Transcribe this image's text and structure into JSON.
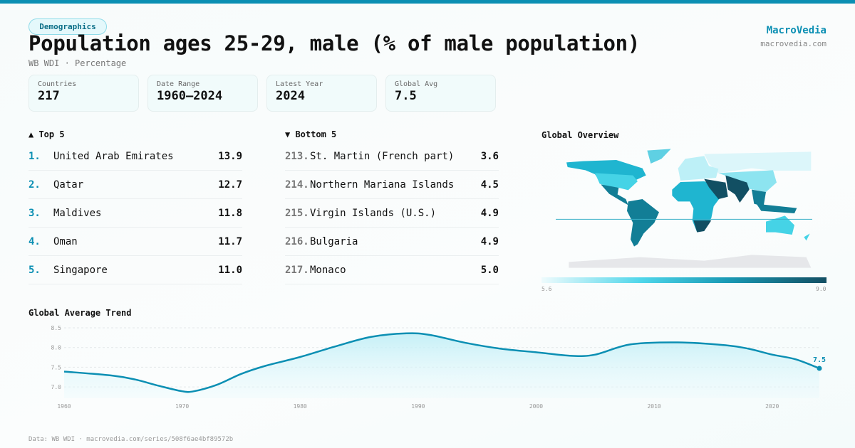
{
  "header": {
    "category": "Demographics",
    "title": "Population ages 25-29, male (% of male population)",
    "subtitle": "WB WDI · Percentage",
    "brand": "MacroVedia",
    "brand_url": "macrovedia.com"
  },
  "stats": [
    {
      "label": "Countries",
      "value": "217"
    },
    {
      "label": "Date Range",
      "value": "1960–2024"
    },
    {
      "label": "Latest Year",
      "value": "2024"
    },
    {
      "label": "Global Avg",
      "value": "7.5"
    }
  ],
  "top5": {
    "title": "▲ Top 5",
    "items": [
      {
        "rank": "1.",
        "name": "United Arab Emirates",
        "value": "13.9"
      },
      {
        "rank": "2.",
        "name": "Qatar",
        "value": "12.7"
      },
      {
        "rank": "3.",
        "name": "Maldives",
        "value": "11.8"
      },
      {
        "rank": "4.",
        "name": "Oman",
        "value": "11.7"
      },
      {
        "rank": "5.",
        "name": "Singapore",
        "value": "11.0"
      }
    ]
  },
  "bottom5": {
    "title": "▼ Bottom 5",
    "items": [
      {
        "rank": "213.",
        "name": "St. Martin (French part)",
        "value": "3.6"
      },
      {
        "rank": "214.",
        "name": "Northern Mariana Islands",
        "value": "4.5"
      },
      {
        "rank": "215.",
        "name": "Virgin Islands (U.S.)",
        "value": "4.9"
      },
      {
        "rank": "216.",
        "name": "Bulgaria",
        "value": "4.9"
      },
      {
        "rank": "217.",
        "name": "Monaco",
        "value": "5.0"
      }
    ]
  },
  "map": {
    "title": "Global Overview",
    "scale_min": "5.6",
    "scale_max": "9.0",
    "colors": [
      "#eefbfd",
      "#4fd6ea",
      "#1a9ab5",
      "#134f63"
    ]
  },
  "chart_data": {
    "type": "area",
    "title": "Global Average Trend",
    "x": [
      1960,
      1964,
      1966,
      1968,
      1970,
      1971,
      1973,
      1975,
      1977,
      1980,
      1983,
      1986,
      1989,
      1991,
      1994,
      1997,
      2000,
      2003,
      2005,
      2008,
      2012,
      2016,
      2018,
      2020,
      2022,
      2024
    ],
    "values": [
      7.39,
      7.29,
      7.19,
      7.03,
      6.89,
      6.89,
      7.06,
      7.33,
      7.53,
      7.76,
      8.03,
      8.27,
      8.36,
      8.32,
      8.12,
      7.97,
      7.88,
      7.79,
      7.82,
      8.08,
      8.13,
      8.06,
      7.97,
      7.82,
      7.7,
      7.47
    ],
    "yticks": [
      "7.0",
      "7.5",
      "8.0",
      "8.5"
    ],
    "xticks": [
      "1960",
      "1970",
      "1980",
      "1990",
      "2000",
      "2010",
      "2020"
    ],
    "ylim": [
      6.75,
      8.5
    ],
    "xlim": [
      1960,
      2024
    ],
    "last_label": "7.5",
    "grid": true,
    "color": "#0b8fb3"
  },
  "footer": "Data: WB WDI · macrovedia.com/series/508f6ae4bf89572b"
}
